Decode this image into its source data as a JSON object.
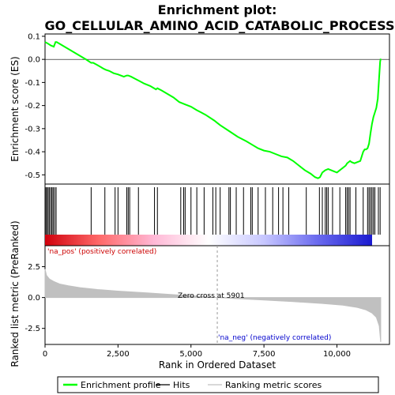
{
  "chart_data": [
    {
      "type": "line",
      "title": "Enrichment plot: GO_CELLULAR_AMINO_ACID_CATABOLIC_PROCESS",
      "ylabel": "Enrichment score (ES)",
      "xlim": [
        0,
        11800
      ],
      "ylim": [
        -0.54,
        0.11
      ],
      "yticks": [
        0.1,
        0.0,
        -0.1,
        -0.2,
        -0.3,
        -0.4,
        -0.5
      ],
      "ytick_labels": [
        "0.1",
        "0.0",
        "-0.1",
        "-0.2",
        "-0.3",
        "-0.4",
        "-0.5"
      ],
      "grid": false,
      "line_color": "#00ff00",
      "series": [
        {
          "name": "Enrichment profile",
          "x": [
            0,
            80,
            200,
            300,
            360,
            400,
            600,
            800,
            1000,
            1200,
            1400,
            1580,
            1650,
            1800,
            2000,
            2080,
            2200,
            2350,
            2500,
            2700,
            2800,
            2850,
            2950,
            3100,
            3250,
            3400,
            3600,
            3800,
            3850,
            4000,
            4200,
            4400,
            4600,
            4700,
            4800,
            5000,
            5200,
            5500,
            5800,
            5900,
            6000,
            6300,
            6600,
            6900,
            7100,
            7300,
            7500,
            7700,
            7900,
            8100,
            8300,
            8500,
            8700,
            8900,
            9100,
            9250,
            9350,
            9420,
            9500,
            9550,
            9600,
            9700,
            9800,
            9900,
            10000,
            10100,
            10150,
            10200,
            10300,
            10350,
            10400,
            10450,
            10500,
            10600,
            10700,
            10800,
            10850,
            10900,
            10950,
            11000,
            11050,
            11100,
            11150,
            11200,
            11250,
            11300,
            11350,
            11400,
            11420,
            11440,
            11460,
            11480,
            11500
          ],
          "y": [
            0.075,
            0.07,
            0.06,
            0.055,
            0.075,
            0.075,
            0.06,
            0.045,
            0.03,
            0.015,
            0.0,
            -0.015,
            -0.015,
            -0.025,
            -0.04,
            -0.045,
            -0.05,
            -0.06,
            -0.065,
            -0.075,
            -0.07,
            -0.07,
            -0.075,
            -0.085,
            -0.095,
            -0.105,
            -0.115,
            -0.13,
            -0.125,
            -0.135,
            -0.15,
            -0.165,
            -0.185,
            -0.19,
            -0.195,
            -0.205,
            -0.22,
            -0.24,
            -0.265,
            -0.275,
            -0.285,
            -0.31,
            -0.335,
            -0.355,
            -0.37,
            -0.385,
            -0.395,
            -0.4,
            -0.41,
            -0.42,
            -0.425,
            -0.44,
            -0.46,
            -0.48,
            -0.495,
            -0.51,
            -0.515,
            -0.51,
            -0.49,
            -0.485,
            -0.48,
            -0.475,
            -0.48,
            -0.485,
            -0.49,
            -0.48,
            -0.475,
            -0.47,
            -0.46,
            -0.45,
            -0.445,
            -0.44,
            -0.445,
            -0.45,
            -0.445,
            -0.44,
            -0.42,
            -0.4,
            -0.39,
            -0.39,
            -0.385,
            -0.365,
            -0.32,
            -0.28,
            -0.25,
            -0.23,
            -0.21,
            -0.17,
            -0.13,
            -0.09,
            -0.05,
            -0.01,
            0.003
          ]
        }
      ]
    },
    {
      "type": "scatter",
      "title": "",
      "hits_x": [
        30,
        70,
        110,
        150,
        200,
        240,
        280,
        330,
        380,
        1580,
        2050,
        2400,
        2500,
        2800,
        2850,
        2900,
        3200,
        3750,
        3850,
        4650,
        4750,
        4800,
        5000,
        5200,
        5450,
        5750,
        5850,
        6000,
        6300,
        6350,
        6550,
        6800,
        7050,
        7100,
        7300,
        7550,
        7800,
        8000,
        8150,
        8350,
        8950,
        9400,
        9500,
        9600,
        9650,
        9700,
        9850,
        10100,
        10300,
        10350,
        10400,
        10450,
        10650,
        10900,
        11050,
        11100,
        11150,
        11200,
        11250,
        11300,
        11420,
        11480
      ],
      "color_bar_stops": [
        "#d0000c",
        "#ff6a6a",
        "#ffb8d6",
        "#ffffff",
        "#c8c8ff",
        "#6a6aee",
        "#1a1ad0"
      ]
    },
    {
      "type": "area",
      "title": "",
      "ylabel": "Ranked list metric (PreRanked)",
      "xlabel": "Rank in Ordered Dataset",
      "xlim": [
        0,
        11800
      ],
      "ylim": [
        -3.8,
        4.2
      ],
      "xticks": [
        0,
        2500,
        5000,
        7500,
        10000
      ],
      "xtick_labels": [
        "0",
        "2,500",
        "5,000",
        "7,500",
        "10,000"
      ],
      "yticks": [
        2.5,
        0.0,
        -2.5
      ],
      "ytick_labels": [
        "2.5",
        "0.0",
        "-2.5"
      ],
      "fill_color": "#c0c0c0",
      "x": [
        0,
        50,
        150,
        300,
        500,
        800,
        1200,
        1800,
        2500,
        3500,
        4500,
        5500,
        5901,
        6500,
        7500,
        8500,
        9500,
        10200,
        10700,
        11000,
        11200,
        11350,
        11450,
        11500
      ],
      "y": [
        2.3,
        1.8,
        1.5,
        1.3,
        1.1,
        0.95,
        0.8,
        0.65,
        0.52,
        0.38,
        0.22,
        0.08,
        0.0,
        -0.08,
        -0.2,
        -0.33,
        -0.48,
        -0.62,
        -0.8,
        -1.0,
        -1.25,
        -1.6,
        -2.3,
        -3.6
      ],
      "annotations": {
        "pos_label": "'na_pos' (positively correlated)",
        "neg_label": "'na_neg' (negatively correlated)",
        "zero_cross": "Zero cross at 5901",
        "zero_cross_x": 5901
      }
    }
  ],
  "legend": {
    "items": [
      {
        "label": "Enrichment profile",
        "color": "#00ff00"
      },
      {
        "label": "Hits",
        "color": "#000000"
      },
      {
        "label": "Ranking metric scores",
        "color": "#c0c0c0"
      }
    ]
  }
}
